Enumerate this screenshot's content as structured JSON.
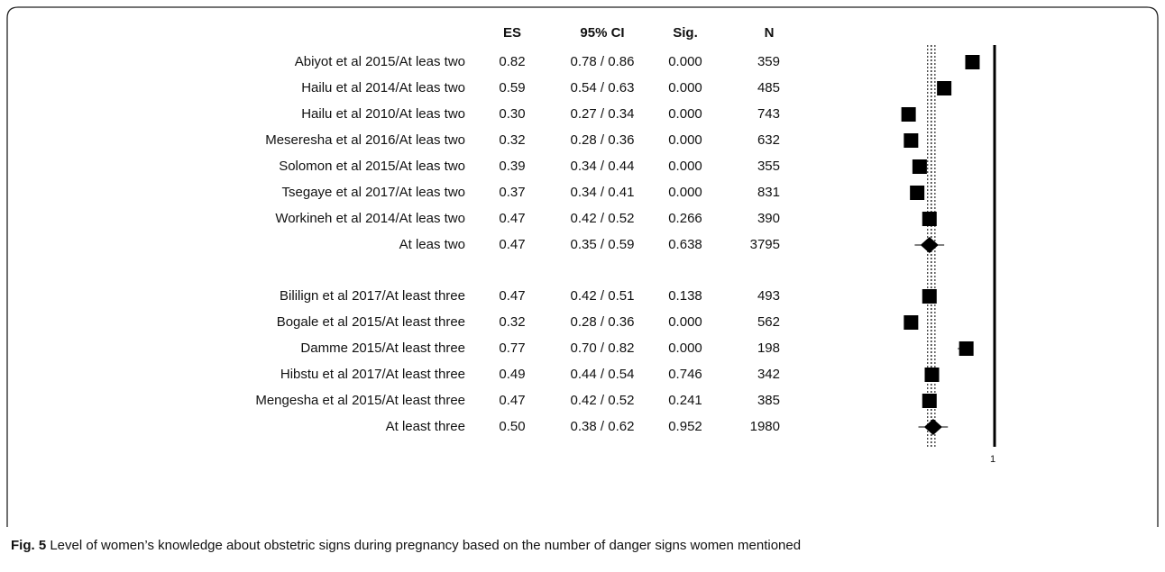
{
  "chart_data": {
    "type": "forest",
    "columns": [
      "ES",
      "95% CI",
      "Sig.",
      "N"
    ],
    "groups": [
      {
        "studies": [
          {
            "label": "Abiyot et al 2015/At leas two",
            "es": 0.82,
            "es_label": "0.82",
            "ci_low": 0.78,
            "ci_high": 0.86,
            "ci_label": "0.78 / 0.86",
            "sig": "0.000",
            "n": 359
          },
          {
            "label": "Hailu et al  2014/At leas two",
            "es": 0.59,
            "es_label": "0.59",
            "ci_low": 0.54,
            "ci_high": 0.63,
            "ci_label": "0.54 / 0.63",
            "sig": "0.000",
            "n": 485
          },
          {
            "label": "Hailu et al 2010/At leas two",
            "es": 0.3,
            "es_label": "0.30",
            "ci_low": 0.27,
            "ci_high": 0.34,
            "ci_label": "0.27 / 0.34",
            "sig": "0.000",
            "n": 743
          },
          {
            "label": "Meseresha et al  2016/At leas two",
            "es": 0.32,
            "es_label": "0.32",
            "ci_low": 0.28,
            "ci_high": 0.36,
            "ci_label": "0.28 / 0.36",
            "sig": "0.000",
            "n": 632
          },
          {
            "label": "Solomon et al 2015/At leas two",
            "es": 0.39,
            "es_label": "0.39",
            "ci_low": 0.34,
            "ci_high": 0.44,
            "ci_label": "0.34 / 0.44",
            "sig": "0.000",
            "n": 355
          },
          {
            "label": "Tsegaye et al 2017/At leas two",
            "es": 0.37,
            "es_label": "0.37",
            "ci_low": 0.34,
            "ci_high": 0.41,
            "ci_label": "0.34 / 0.41",
            "sig": "0.000",
            "n": 831
          },
          {
            "label": "Workineh et al 2014/At leas two",
            "es": 0.47,
            "es_label": "0.47",
            "ci_low": 0.42,
            "ci_high": 0.52,
            "ci_label": "0.42 / 0.52",
            "sig": "0.266",
            "n": 390
          }
        ],
        "pooled": {
          "label": "At leas two",
          "es": 0.47,
          "es_label": "0.47",
          "ci_low": 0.35,
          "ci_high": 0.59,
          "ci_label": "0.35 / 0.59",
          "sig": "0.638",
          "n": 3795
        }
      },
      {
        "studies": [
          {
            "label": "Bililign et al 2017/At least three",
            "es": 0.47,
            "es_label": "0.47",
            "ci_low": 0.42,
            "ci_high": 0.51,
            "ci_label": "0.42 / 0.51",
            "sig": "0.138",
            "n": 493
          },
          {
            "label": "Bogale et al 2015/At least three",
            "es": 0.32,
            "es_label": "0.32",
            "ci_low": 0.28,
            "ci_high": 0.36,
            "ci_label": "0.28 / 0.36",
            "sig": "0.000",
            "n": 562
          },
          {
            "label": "Damme 2015/At least three",
            "es": 0.77,
            "es_label": "0.77",
            "ci_low": 0.7,
            "ci_high": 0.82,
            "ci_label": "0.70 / 0.82",
            "sig": "0.000",
            "n": 198
          },
          {
            "label": "Hibstu et al 2017/At least three",
            "es": 0.49,
            "es_label": "0.49",
            "ci_low": 0.44,
            "ci_high": 0.54,
            "ci_label": "0.44 / 0.54",
            "sig": "0.746",
            "n": 342
          },
          {
            "label": "Mengesha et al 2015/At least three",
            "es": 0.47,
            "es_label": "0.47",
            "ci_low": 0.42,
            "ci_high": 0.52,
            "ci_label": "0.42 / 0.52",
            "sig": "0.241",
            "n": 385
          }
        ],
        "pooled": {
          "label": "At least three",
          "es": 0.5,
          "es_label": "0.50",
          "ci_low": 0.38,
          "ci_high": 0.62,
          "ci_label": "0.38 / 0.62",
          "sig": "0.952",
          "n": 1980
        }
      }
    ],
    "xlim": [
      0.2,
      1
    ],
    "xticks": [
      1
    ],
    "caption_label": "Fig. 5",
    "caption": "Level of women’s knowledge about obstetric signs during pregnancy based on the number of danger signs women mentioned"
  }
}
